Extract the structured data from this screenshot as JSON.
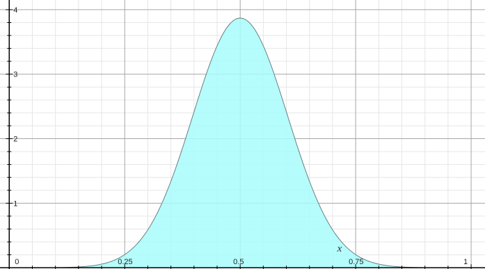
{
  "chart_data": {
    "type": "area",
    "distribution": "normal",
    "mean": 0.5,
    "std_dev": 0.103,
    "peak_value": 3.87,
    "xlim": [
      -0.02,
      1.03
    ],
    "ylim": [
      -0.02,
      4.15
    ],
    "x_ticks": [
      {
        "value": 0,
        "label": "0"
      },
      {
        "value": 0.25,
        "label": "0.25"
      },
      {
        "value": 0.5,
        "label": "0.5"
      },
      {
        "value": 0.75,
        "label": "0.75"
      },
      {
        "value": 1,
        "label": "1"
      }
    ],
    "y_ticks": [
      {
        "value": 1,
        "label": "1"
      },
      {
        "value": 2,
        "label": "2"
      },
      {
        "value": 3,
        "label": "3"
      },
      {
        "value": 4,
        "label": "4"
      }
    ],
    "x_axis_variable": "x",
    "grid": true,
    "fill_color": "#a8fbfb",
    "line_color": "#6a7f80",
    "major_grid_color": "#a6a6a6",
    "minor_grid_color": "#e6e6e6"
  }
}
